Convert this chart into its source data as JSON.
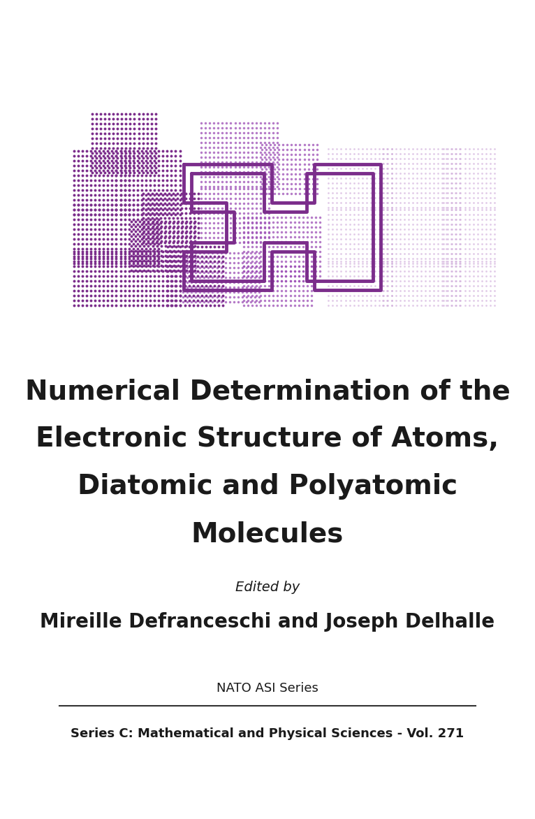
{
  "title_lines": [
    "Numerical Determination of the",
    "Electronic Structure of Atoms,",
    "Diatomic and Polyatomic",
    "Molecules"
  ],
  "edited_by": "Edited by",
  "authors": "Mireille Defranceschi and Joseph Delhalle",
  "series_title": "NATO ASI Series",
  "series_subtitle": "Series C: Mathematical and Physical Sciences - Vol. 271",
  "bg_color": "#ffffff",
  "title_color": "#1a1a1a",
  "text_color": "#1a1a1a",
  "purple_dark": "#7B2D8B",
  "purple_medium": "#9B4DB5",
  "purple_light": "#C9A0D5",
  "purple_outline": "#7B2D8B"
}
